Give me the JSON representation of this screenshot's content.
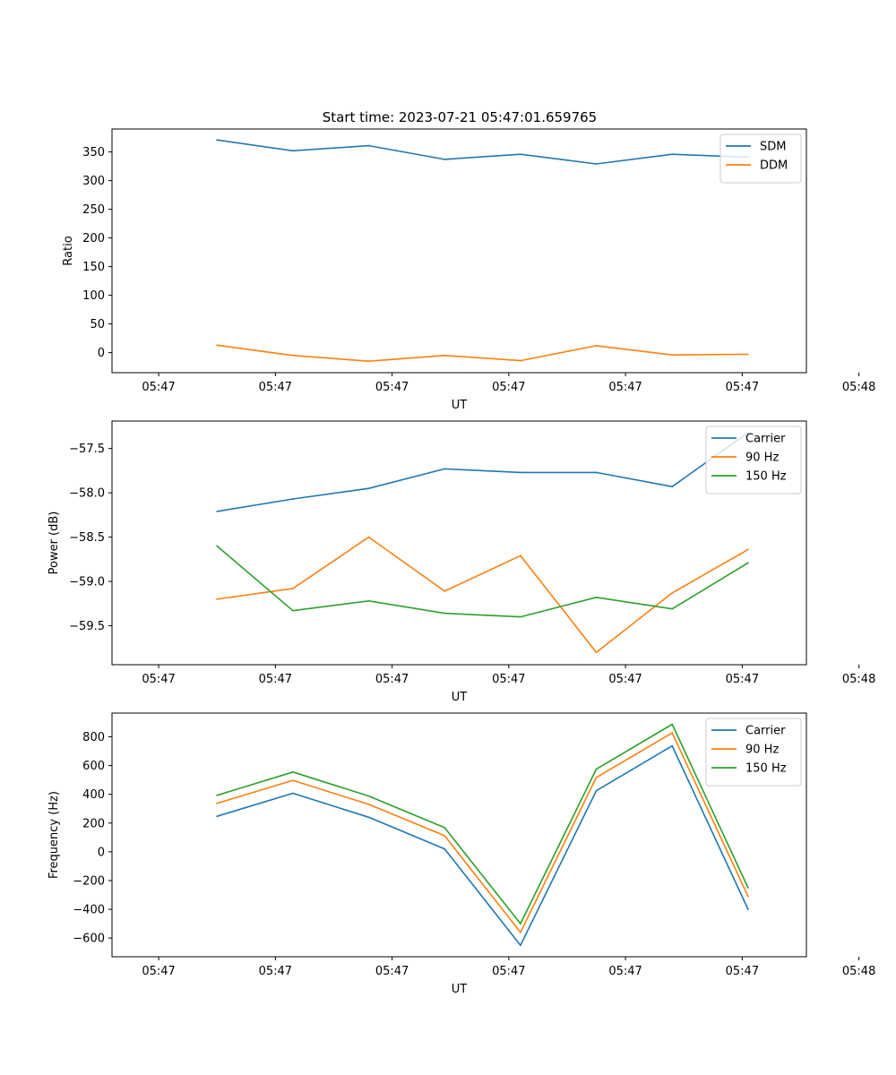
{
  "figure_title": "Start time: 2023-07-21 05:47:01.659765",
  "chart_data": [
    {
      "type": "line",
      "x": [
        0.5,
        1.15,
        1.8,
        2.45,
        3.1,
        3.75,
        4.4,
        5.05
      ],
      "xlim": [
        -0.4,
        5.55
      ],
      "x_ticks": [
        0,
        1,
        2,
        3,
        4,
        5,
        6
      ],
      "x_tick_labels": [
        "05:47",
        "05:47",
        "05:47",
        "05:47",
        "05:47",
        "05:47",
        "05:48"
      ],
      "xlabel": "UT",
      "ylabel": "Ratio",
      "ylim": [
        -35,
        390
      ],
      "y_ticks": [
        0,
        50,
        100,
        150,
        200,
        250,
        300,
        350
      ],
      "y_tick_labels": [
        "0",
        "50",
        "100",
        "150",
        "200",
        "250",
        "300",
        "350"
      ],
      "legend": "top-right",
      "series": [
        {
          "name": "SDM",
          "color": "#1f77b4",
          "values": [
            371,
            352,
            361,
            337,
            346,
            329,
            346,
            341
          ]
        },
        {
          "name": "DDM",
          "color": "#ff7f0e",
          "values": [
            13,
            -5,
            -15,
            -5,
            -14,
            12,
            -4,
            -3
          ]
        }
      ]
    },
    {
      "type": "line",
      "x": [
        0.5,
        1.15,
        1.8,
        2.45,
        3.1,
        3.75,
        4.4,
        5.05
      ],
      "xlim": [
        -0.4,
        5.55
      ],
      "x_ticks": [
        0,
        1,
        2,
        3,
        4,
        5,
        6
      ],
      "x_tick_labels": [
        "05:47",
        "05:47",
        "05:47",
        "05:47",
        "05:47",
        "05:47",
        "05:48"
      ],
      "xlabel": "UT",
      "ylabel": "Power (dB)",
      "ylim": [
        -59.94,
        -57.19
      ],
      "y_ticks": [
        -57.5,
        -58.0,
        -58.5,
        -59.0,
        -59.5
      ],
      "y_tick_labels": [
        "−57.5",
        "−58.0",
        "−58.5",
        "−59.0",
        "−59.5"
      ],
      "legend": "top-right",
      "series": [
        {
          "name": "Carrier",
          "color": "#1f77b4",
          "values": [
            -58.21,
            -58.07,
            -57.95,
            -57.73,
            -57.77,
            -57.77,
            -57.93,
            -57.32
          ]
        },
        {
          "name": "90 Hz",
          "color": "#ff7f0e",
          "values": [
            -59.2,
            -59.08,
            -58.5,
            -59.11,
            -58.71,
            -59.8,
            -59.13,
            -58.64
          ]
        },
        {
          "name": "150 Hz",
          "color": "#2ca02c",
          "values": [
            -58.6,
            -59.33,
            -59.22,
            -59.36,
            -59.4,
            -59.18,
            -59.31,
            -58.79
          ]
        }
      ]
    },
    {
      "type": "line",
      "x": [
        0.5,
        1.15,
        1.8,
        2.45,
        3.1,
        3.75,
        4.4,
        5.05
      ],
      "xlim": [
        -0.4,
        5.55
      ],
      "x_ticks": [
        0,
        1,
        2,
        3,
        4,
        5,
        6
      ],
      "x_tick_labels": [
        "05:47",
        "05:47",
        "05:47",
        "05:47",
        "05:47",
        "05:47",
        "05:48"
      ],
      "xlabel": "UT",
      "ylabel": "Frequency (Hz)",
      "ylim": [
        -730,
        965
      ],
      "y_ticks": [
        -600,
        -400,
        -200,
        0,
        200,
        400,
        600,
        800
      ],
      "y_tick_labels": [
        "−600",
        "−400",
        "−200",
        "0",
        "200",
        "400",
        "600",
        "800"
      ],
      "legend": "top-right",
      "series": [
        {
          "name": "Carrier",
          "color": "#1f77b4",
          "values": [
            247,
            407,
            240,
            20,
            -650,
            425,
            737,
            -400
          ]
        },
        {
          "name": "90 Hz",
          "color": "#ff7f0e",
          "values": [
            337,
            497,
            330,
            112,
            -560,
            517,
            827,
            -310
          ]
        },
        {
          "name": "150 Hz",
          "color": "#2ca02c",
          "values": [
            393,
            555,
            388,
            168,
            -500,
            575,
            887,
            -250
          ]
        }
      ]
    }
  ]
}
